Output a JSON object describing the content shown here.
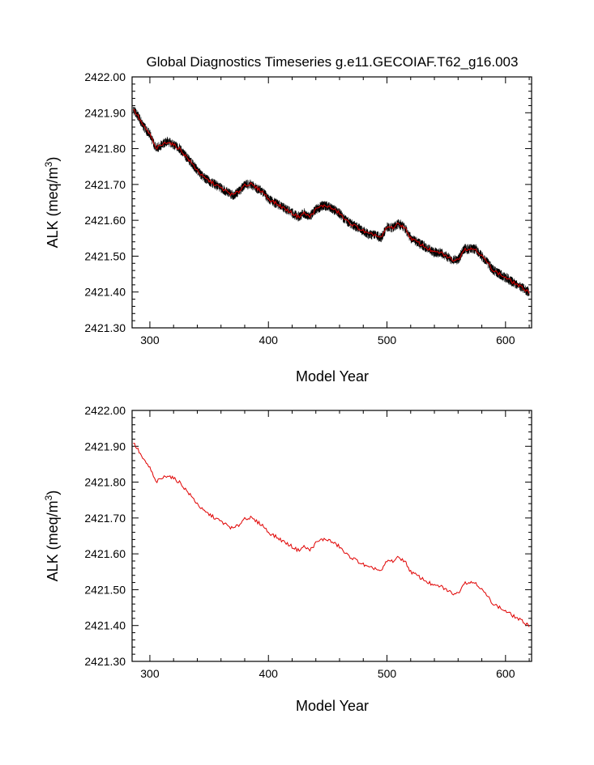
{
  "title": "Global Diagnostics Timeseries g.e11.GECOIAF.T62_g16.003",
  "colors": {
    "raw": "#000000",
    "smooth": "#e00000",
    "axes": "#000000"
  },
  "chart_data": [
    {
      "type": "line",
      "xlabel": "Model Year",
      "ylabel": "ALK (meq/m",
      "ylabel_sup": "3",
      "ylabel_close": ")",
      "xlim": [
        285,
        622
      ],
      "ylim": [
        2421.3,
        2422.0
      ],
      "xticks": [
        300,
        400,
        500,
        600
      ],
      "xtick_labels": [
        "300",
        "400",
        "500",
        "600"
      ],
      "yticks": [
        2421.3,
        2421.4,
        2421.5,
        2421.6,
        2421.7,
        2421.8,
        2421.9,
        2422.0
      ],
      "ytick_labels": [
        "2421.30",
        "2421.40",
        "2421.50",
        "2421.60",
        "2421.70",
        "2421.80",
        "2421.90",
        "2422.00"
      ],
      "grid": false,
      "series": [
        {
          "style": "raw-monthly",
          "color": "#000000",
          "x": [
            286,
            290,
            295,
            300,
            305,
            310,
            315,
            320,
            325,
            330,
            335,
            340,
            345,
            350,
            355,
            360,
            365,
            370,
            375,
            380,
            385,
            390,
            395,
            400,
            405,
            410,
            415,
            420,
            425,
            430,
            435,
            440,
            445,
            450,
            455,
            460,
            465,
            470,
            475,
            480,
            485,
            490,
            495,
            500,
            505,
            510,
            515,
            520,
            525,
            530,
            535,
            540,
            545,
            550,
            555,
            560,
            565,
            570,
            575,
            580,
            585,
            590,
            595,
            600,
            605,
            610,
            615,
            620
          ],
          "y": [
            2421.91,
            2421.89,
            2421.86,
            2421.84,
            2421.8,
            2421.81,
            2421.82,
            2421.81,
            2421.8,
            2421.78,
            2421.76,
            2421.74,
            2421.72,
            2421.71,
            2421.7,
            2421.69,
            2421.68,
            2421.67,
            2421.68,
            2421.7,
            2421.7,
            2421.69,
            2421.68,
            2421.66,
            2421.65,
            2421.64,
            2421.63,
            2421.62,
            2421.61,
            2421.62,
            2421.61,
            2421.63,
            2421.64,
            2421.64,
            2421.63,
            2421.62,
            2421.6,
            2421.59,
            2421.58,
            2421.57,
            2421.56,
            2421.56,
            2421.55,
            2421.58,
            2421.58,
            2421.59,
            2421.58,
            2421.55,
            2421.54,
            2421.53,
            2421.52,
            2421.51,
            2421.51,
            2421.5,
            2421.49,
            2421.49,
            2421.52,
            2421.52,
            2421.52,
            2421.5,
            2421.48,
            2421.46,
            2421.45,
            2421.44,
            2421.43,
            2421.42,
            2421.41,
            2421.4
          ]
        },
        {
          "style": "smoothed",
          "color": "#e00000",
          "x": [
            286,
            290,
            295,
            300,
            305,
            310,
            315,
            320,
            325,
            330,
            335,
            340,
            345,
            350,
            355,
            360,
            365,
            370,
            375,
            380,
            385,
            390,
            395,
            400,
            405,
            410,
            415,
            420,
            425,
            430,
            435,
            440,
            445,
            450,
            455,
            460,
            465,
            470,
            475,
            480,
            485,
            490,
            495,
            500,
            505,
            510,
            515,
            520,
            525,
            530,
            535,
            540,
            545,
            550,
            555,
            560,
            565,
            570,
            575,
            580,
            585,
            590,
            595,
            600,
            605,
            610,
            615,
            620
          ],
          "y": [
            2421.91,
            2421.89,
            2421.86,
            2421.84,
            2421.8,
            2421.81,
            2421.82,
            2421.81,
            2421.8,
            2421.78,
            2421.76,
            2421.74,
            2421.72,
            2421.71,
            2421.7,
            2421.69,
            2421.68,
            2421.67,
            2421.68,
            2421.7,
            2421.7,
            2421.69,
            2421.68,
            2421.66,
            2421.65,
            2421.64,
            2421.63,
            2421.62,
            2421.61,
            2421.62,
            2421.61,
            2421.63,
            2421.64,
            2421.64,
            2421.63,
            2421.62,
            2421.6,
            2421.59,
            2421.58,
            2421.57,
            2421.56,
            2421.56,
            2421.55,
            2421.58,
            2421.58,
            2421.59,
            2421.58,
            2421.55,
            2421.54,
            2421.53,
            2421.52,
            2421.51,
            2421.51,
            2421.5,
            2421.49,
            2421.49,
            2421.52,
            2421.52,
            2421.52,
            2421.5,
            2421.48,
            2421.46,
            2421.45,
            2421.44,
            2421.43,
            2421.42,
            2421.41,
            2421.4
          ]
        }
      ]
    },
    {
      "type": "line",
      "xlabel": "Model Year",
      "ylabel": "ALK (meq/m",
      "ylabel_sup": "3",
      "ylabel_close": ")",
      "xlim": [
        285,
        622
      ],
      "ylim": [
        2421.3,
        2422.0
      ],
      "xticks": [
        300,
        400,
        500,
        600
      ],
      "xtick_labels": [
        "300",
        "400",
        "500",
        "600"
      ],
      "yticks": [
        2421.3,
        2421.4,
        2421.5,
        2421.6,
        2421.7,
        2421.8,
        2421.9,
        2422.0
      ],
      "ytick_labels": [
        "2421.30",
        "2421.40",
        "2421.50",
        "2421.60",
        "2421.70",
        "2421.80",
        "2421.90",
        "2422.00"
      ],
      "grid": false,
      "series": [
        {
          "style": "smoothed",
          "color": "#e00000",
          "x": [
            286,
            290,
            295,
            300,
            305,
            310,
            315,
            320,
            325,
            330,
            335,
            340,
            345,
            350,
            355,
            360,
            365,
            370,
            375,
            380,
            385,
            390,
            395,
            400,
            405,
            410,
            415,
            420,
            425,
            430,
            435,
            440,
            445,
            450,
            455,
            460,
            465,
            470,
            475,
            480,
            485,
            490,
            495,
            500,
            505,
            510,
            515,
            520,
            525,
            530,
            535,
            540,
            545,
            550,
            555,
            560,
            565,
            570,
            575,
            580,
            585,
            590,
            595,
            600,
            605,
            610,
            615,
            620
          ],
          "y": [
            2421.91,
            2421.89,
            2421.86,
            2421.84,
            2421.8,
            2421.81,
            2421.82,
            2421.81,
            2421.8,
            2421.78,
            2421.76,
            2421.74,
            2421.72,
            2421.71,
            2421.7,
            2421.69,
            2421.68,
            2421.67,
            2421.68,
            2421.7,
            2421.7,
            2421.69,
            2421.68,
            2421.66,
            2421.65,
            2421.64,
            2421.63,
            2421.62,
            2421.61,
            2421.62,
            2421.61,
            2421.63,
            2421.64,
            2421.64,
            2421.63,
            2421.62,
            2421.6,
            2421.59,
            2421.58,
            2421.57,
            2421.56,
            2421.56,
            2421.55,
            2421.58,
            2421.58,
            2421.59,
            2421.58,
            2421.55,
            2421.54,
            2421.53,
            2421.52,
            2421.51,
            2421.51,
            2421.5,
            2421.49,
            2421.49,
            2421.52,
            2421.52,
            2421.52,
            2421.5,
            2421.48,
            2421.46,
            2421.45,
            2421.44,
            2421.43,
            2421.42,
            2421.41,
            2421.4
          ]
        }
      ]
    }
  ]
}
